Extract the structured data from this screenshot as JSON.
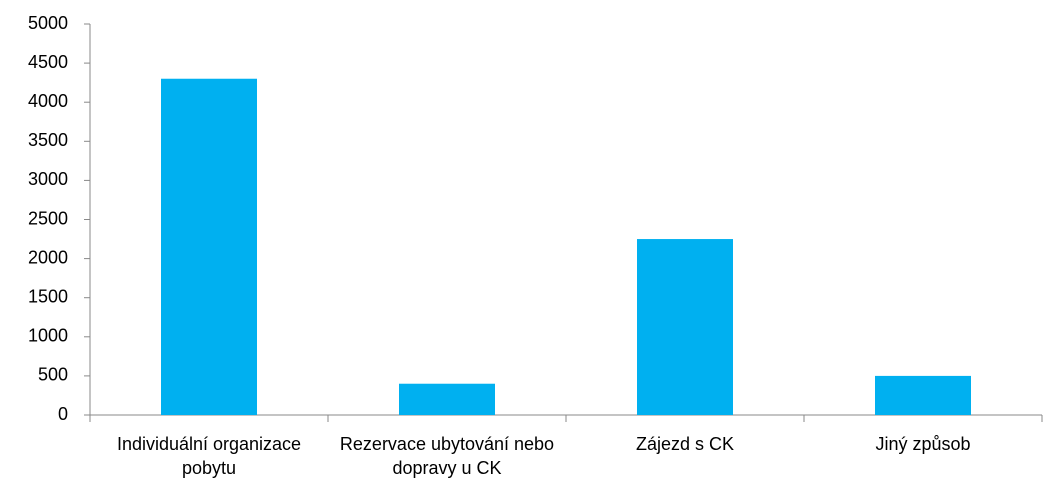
{
  "chart_data": {
    "type": "bar",
    "categories": [
      "Individuální organizace pobytu",
      "Rezervace ubytování nebo dopravy u CK",
      "Zájezd s CK",
      "Jiný způsob"
    ],
    "values": [
      4300,
      400,
      2250,
      500
    ],
    "color": "#00b0f0",
    "ylim": [
      0,
      5000
    ],
    "yticks": [
      0,
      500,
      1000,
      1500,
      2000,
      2500,
      3000,
      3500,
      4000,
      4500,
      5000
    ],
    "grid": false
  }
}
